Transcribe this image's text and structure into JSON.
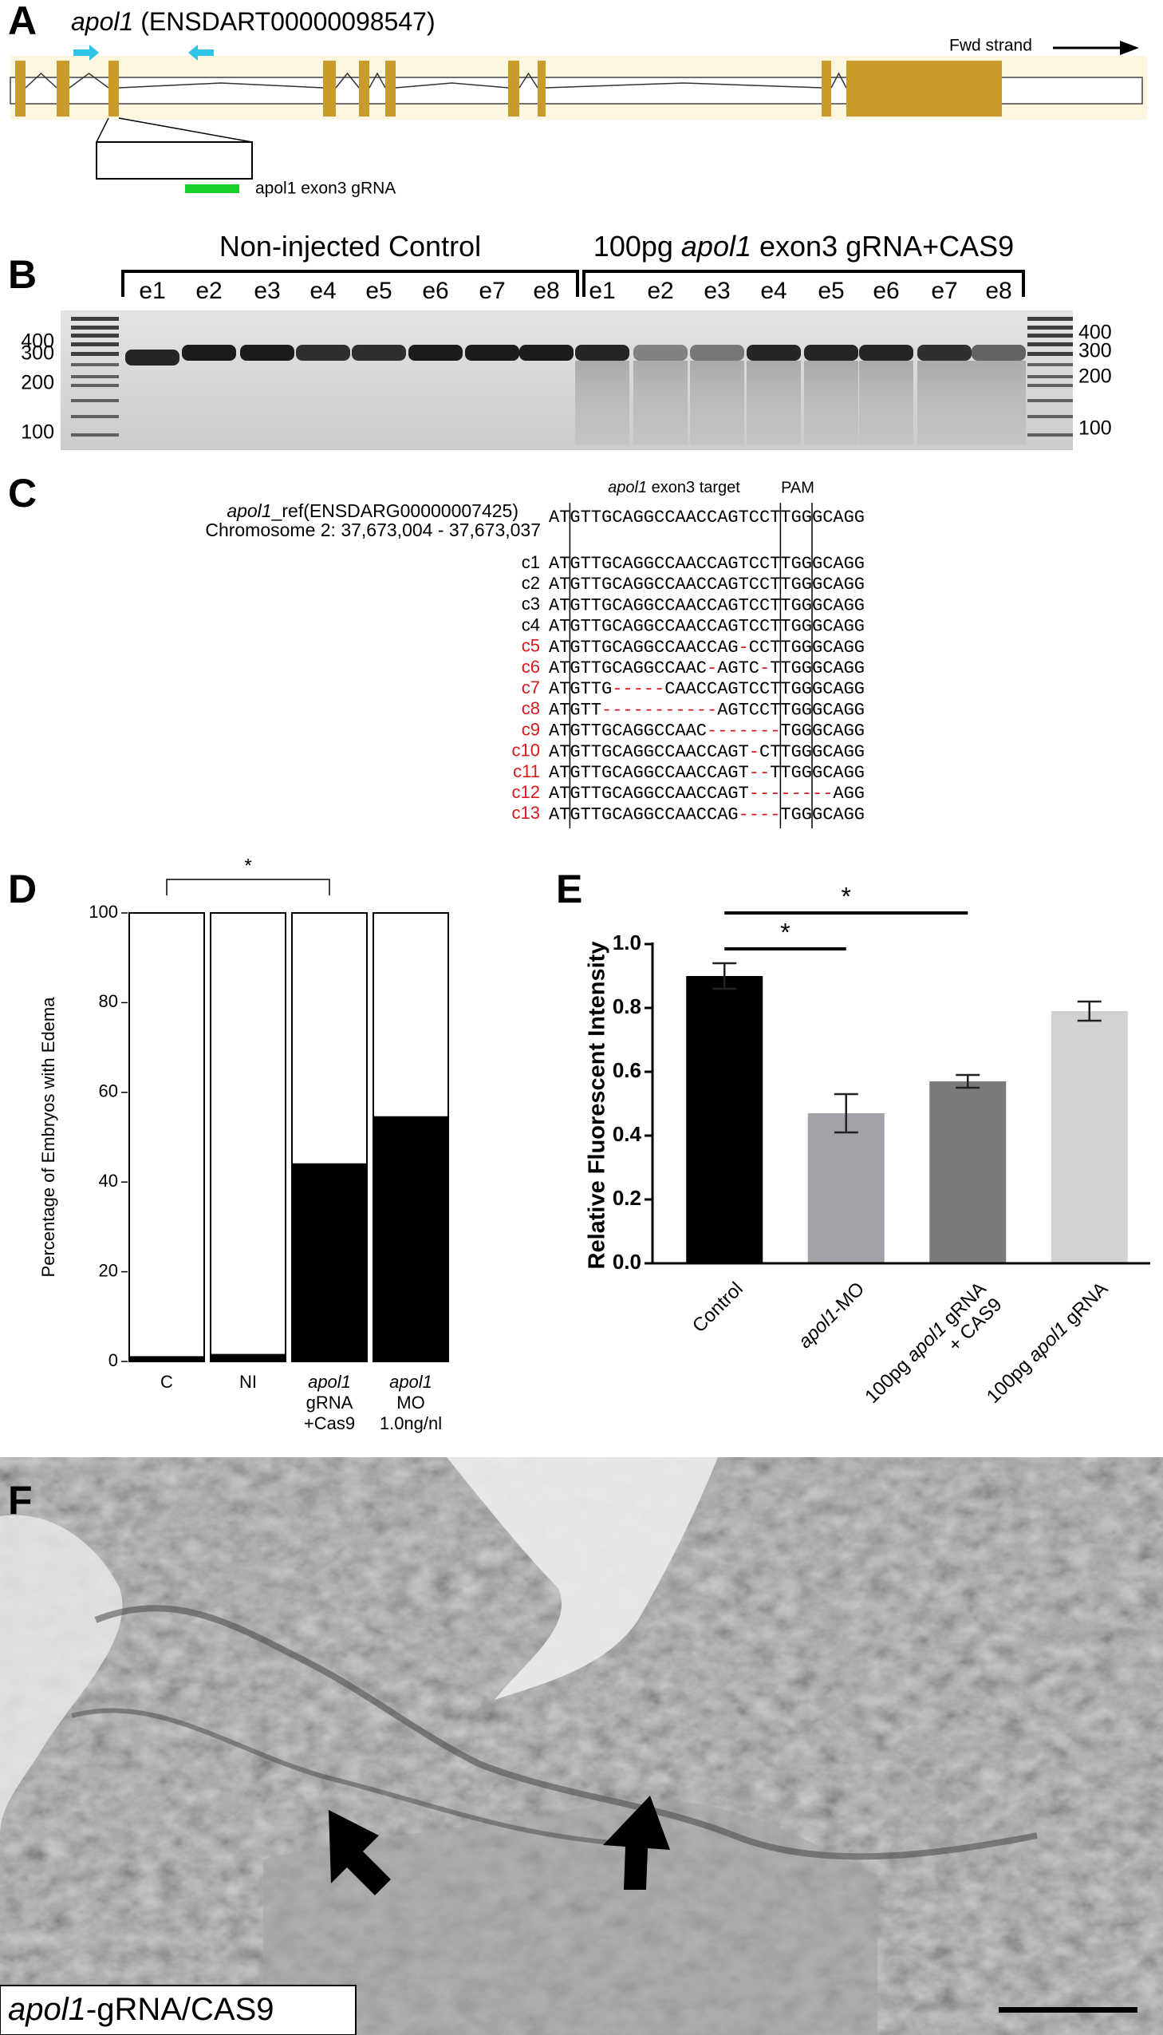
{
  "panel_a": {
    "label": "A",
    "title": [
      {
        "text": "apol1",
        "italic": true
      },
      {
        "text": " (ENSDART00000098547)",
        "italic": false
      }
    ],
    "strand": "Fwd strand",
    "grna": "apol1 exon3 gRNA"
  },
  "panel_b": {
    "label": "B",
    "groups": [
      [
        {
          "text": "Non-injected Control",
          "italic": false
        }
      ],
      [
        {
          "text": "100pg ",
          "italic": false
        },
        {
          "text": "apol1",
          "italic": true
        },
        {
          "text": " exon3 gRNA+CAS9",
          "italic": false
        }
      ]
    ],
    "lanes": [
      [
        "e1",
        "e2",
        "e3",
        "e4",
        "e5",
        "e6",
        "e7",
        "e8"
      ],
      [
        "e1",
        "e2",
        "e3",
        "e4",
        "e5",
        "e6",
        "e7",
        "e8"
      ]
    ],
    "markers_left": [
      400,
      300,
      200,
      100
    ],
    "markers_right": [
      400,
      300,
      200,
      100
    ]
  },
  "panel_c": {
    "label": "C",
    "reference": [
      {
        "text": "apol1",
        "italic": true
      },
      {
        "text": "_ref(ENSDARG00000007425)",
        "italic": false
      }
    ],
    "location": "Chromosome 2: 37,673,004 - 37,673,037",
    "target": [
      {
        "text": "apol1",
        "italic": true
      },
      {
        "text": " exon3 target",
        "italic": false
      }
    ],
    "pam": "PAM",
    "reference_sequence": "ATGTTGCAGGCCAACCAGTCCTTGGGCAGG",
    "clones": [
      {
        "name": "c1",
        "sequence": "ATGTTGCAGGCCAACCAGTCCTTGGGCAGG",
        "color": "#000000"
      },
      {
        "name": "c2",
        "sequence": "ATGTTGCAGGCCAACCAGTCCTTGGGCAGG",
        "color": "#000000"
      },
      {
        "name": "c3",
        "sequence": "ATGTTGCAGGCCAACCAGTCCTTGGGCAGG",
        "color": "#000000"
      },
      {
        "name": "c4",
        "sequence": "ATGTTGCAGGCCAACCAGTCCTTGGGCAGG",
        "color": "#000000"
      },
      {
        "name": "c5",
        "sequence": "ATGTTGCAGGCCAACCAG-CCTTGGGCAGG",
        "color": "#d7191c"
      },
      {
        "name": "c6",
        "sequence": "ATGTTGCAGGCCAAC-AGTC-TTGGGCAGG",
        "color": "#d7191c"
      },
      {
        "name": "c7",
        "sequence": "ATGTTG-----CAACCAGTCCTTGGGCAGG",
        "color": "#d7191c"
      },
      {
        "name": "c8",
        "sequence": "ATGTT-----------AGTCCTTGGGCAGG",
        "color": "#d7191c"
      },
      {
        "name": "c9",
        "sequence": "ATGTTGCAGGCCAAC-------TGGGCAGG",
        "color": "#d7191c"
      },
      {
        "name": "c10",
        "sequence": "ATGTTGCAGGCCAACCAGT-CTTGGGCAGG",
        "color": "#d7191c"
      },
      {
        "name": "c11",
        "sequence": "ATGTTGCAGGCCAACCAGT--TTGGGCAGG",
        "color": "#d7191c"
      },
      {
        "name": "c12",
        "sequence": "ATGTTGCAGGCCAACCAGT--------AGG",
        "color": "#d7191c"
      },
      {
        "name": "c13",
        "sequence": "ATGTTGCAGGCCAACCAG----TGGGCAGG",
        "color": "#d7191c"
      }
    ]
  },
  "chart_data": [
    {
      "type": "stacked_bar",
      "panel": "D",
      "ylabel": "Percentage of Embryos with Edema",
      "categories": [
        [
          [
            {
              "text": "C",
              "italic": false
            }
          ]
        ],
        [
          [
            {
              "text": "NI",
              "italic": false
            }
          ]
        ],
        [
          [
            {
              "text": "apol1",
              "italic": true
            }
          ],
          [
            {
              "text": "gRNA",
              "italic": false
            }
          ],
          [
            {
              "text": "+Cas9",
              "italic": false
            }
          ]
        ],
        [
          [
            {
              "text": "apol1",
              "italic": true
            }
          ],
          [
            {
              "text": "MO",
              "italic": false
            }
          ],
          [
            {
              "text": "1.0ng/nl",
              "italic": false
            }
          ]
        ]
      ],
      "series": [
        {
          "color": "#000000",
          "values": [
            1,
            1.5,
            44,
            54.5
          ]
        },
        {
          "color": "#ffffff",
          "values": [
            99,
            98.5,
            56,
            45.5
          ]
        }
      ],
      "ylim": [
        0,
        100
      ],
      "yticks": [
        0,
        20,
        40,
        60,
        80,
        100
      ],
      "brackets": [
        {
          "text": "*",
          "between": [
            0,
            2
          ]
        }
      ]
    },
    {
      "type": "bar",
      "panel": "E",
      "ylabel": "Relative Fluorescent Intensity",
      "categories": [
        [
          [
            {
              "text": "Control",
              "italic": false
            }
          ]
        ],
        [
          [
            {
              "text": "apol1",
              "italic": true
            },
            {
              "text": "-MO",
              "italic": false
            }
          ]
        ],
        [
          [
            {
              "text": "100pg ",
              "italic": false
            },
            {
              "text": "apol1",
              "italic": true
            },
            {
              "text": " gRNA",
              "italic": false
            }
          ],
          [
            {
              "text": "+ CAS9",
              "italic": false
            }
          ]
        ],
        [
          [
            {
              "text": "100pg ",
              "italic": false
            },
            {
              "text": "apol1",
              "italic": true
            },
            {
              "text": " gRNA",
              "italic": false
            }
          ]
        ]
      ],
      "values": [
        0.9,
        0.47,
        0.57,
        0.79
      ],
      "errors": [
        0.04,
        0.06,
        0.02,
        0.03
      ],
      "colors": [
        "#000000",
        "#a2a2a8",
        "#7b7b7b",
        "#d2d2d2"
      ],
      "ylim": [
        0,
        1.0
      ],
      "yticks": [
        {
          "value": 0,
          "label": "0.0"
        },
        0.2,
        0.4,
        0.6,
        0.8,
        {
          "value": 1.0,
          "label": "1.0"
        }
      ],
      "brackets": [
        {
          "text": "*",
          "between": [
            0,
            1
          ]
        },
        {
          "text": "*",
          "between": [
            0,
            2
          ]
        }
      ]
    }
  ],
  "panel_f": {
    "label": "F",
    "caption": [
      {
        "text": "apol1",
        "italic": true
      },
      {
        "text": "-gRNA/CAS9",
        "italic": false
      }
    ]
  }
}
